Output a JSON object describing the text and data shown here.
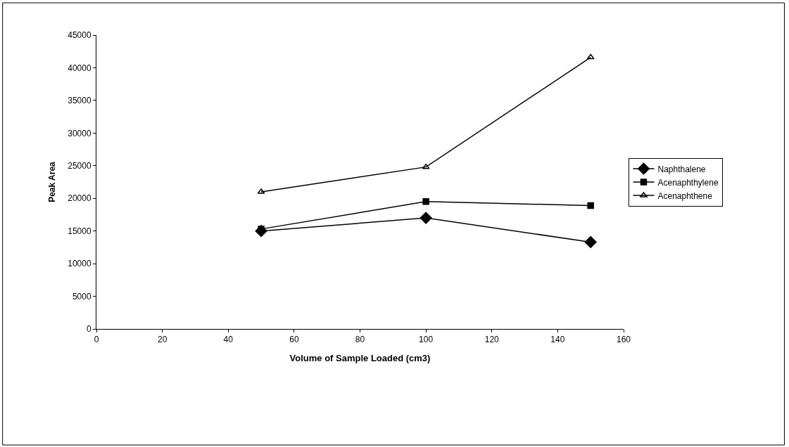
{
  "chart_data": {
    "type": "line",
    "xlabel": "Volume of Sample Loaded (cm3)",
    "ylabel": "Peak Area",
    "x": [
      50,
      100,
      150
    ],
    "series": [
      {
        "name": "Naphthalene",
        "color": "#000000",
        "values": [
          15000,
          17000,
          13300
        ],
        "marker": "diamond"
      },
      {
        "name": "Acenaphthylene",
        "color": "#000000",
        "values": [
          15300,
          19500,
          18900
        ],
        "marker": "square"
      },
      {
        "name": "Acenaphthene",
        "color": "#000000",
        "values": [
          21000,
          24800,
          41600
        ],
        "marker": "triangle"
      }
    ],
    "xlim": [
      0,
      160
    ],
    "xticks": [
      0,
      20,
      40,
      60,
      80,
      100,
      120,
      140,
      160
    ],
    "ylim": [
      0,
      45000
    ],
    "yticks": [
      0,
      5000,
      10000,
      15000,
      20000,
      25000,
      30000,
      35000,
      40000,
      45000
    ],
    "legend": "right",
    "line_style": "solid"
  }
}
